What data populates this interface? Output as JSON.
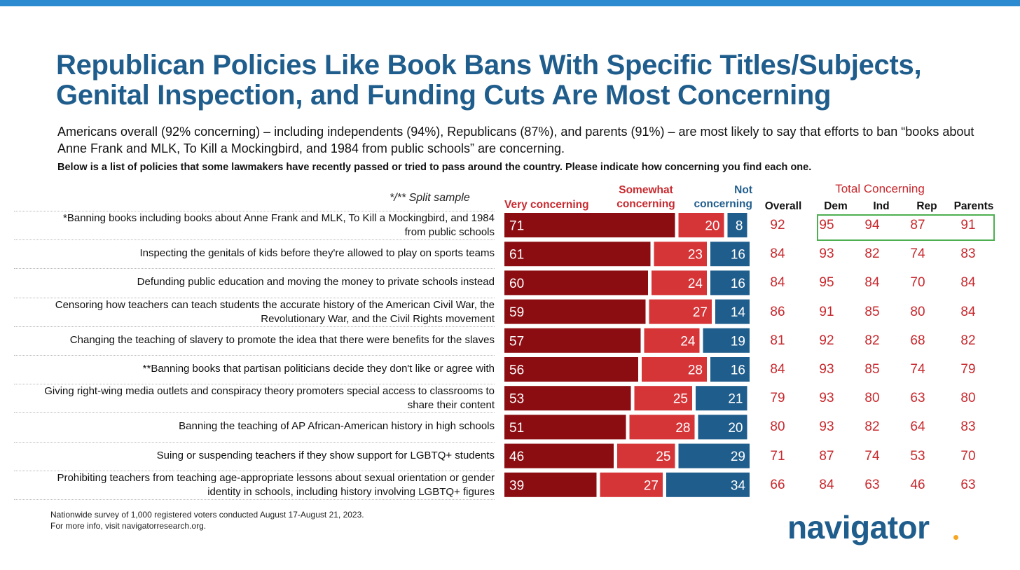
{
  "title": "Republican Policies Like Book Bans With Specific Titles/Subjects, Genital Inspection, and Funding Cuts Are Most Concerning",
  "subtitle": "Americans overall (92% concerning) – including independents (94%), Republicans (87%), and parents (91%) – are most likely to say that efforts to ban “books about Anne Frank and MLK, To Kill a Mockingbird, and 1984 from public schools” are concerning.",
  "question": "Below is a list of policies that some lawmakers have recently passed or tried to pass around the country. Please indicate how concerning you find each one.",
  "split_note": "*/** Split sample",
  "headers": {
    "very": "Very concerning",
    "somewhat": "Somewhat concerning",
    "not": "Not concerning",
    "overall": "Overall",
    "total": "Total Concerning",
    "dem": "Dem",
    "ind": "Ind",
    "rep": "Rep",
    "parents": "Parents"
  },
  "colors": {
    "very": "#8b0d12",
    "somewhat": "#d63538",
    "not": "#1f5d8c",
    "numbers": "#c8292e",
    "highlight": "#4caf50",
    "accent": "#2b8ad0"
  },
  "footnote": {
    "line1": "Nationwide survey of 1,000 registered voters conducted August 17-August 21, 2023.",
    "line2": "For more info, visit navigatorresearch.org."
  },
  "logo": "navigator",
  "chart_data": {
    "type": "bar",
    "orientation": "horizontal",
    "stacked": true,
    "xlim": [
      0,
      100
    ],
    "categories": [
      "*Banning books including books about Anne Frank and MLK, To Kill a Mockingbird, and 1984 from public schools",
      "Inspecting the genitals of kids before they're allowed to play on sports teams",
      "Defunding public education and moving the money to private schools instead",
      "Censoring how teachers can teach students the accurate history of the American Civil War, the Revolutionary War, and the Civil Rights movement",
      "Changing the teaching of slavery to promote the idea that there were benefits for the slaves",
      "**Banning books that partisan politicians decide they don't like or agree with",
      "Giving right-wing media outlets and conspiracy theory promoters special access to classrooms to share their content",
      "Banning the teaching of AP African-American history in high schools",
      "Suing or suspending teachers if they show support for LGBTQ+ students",
      "Prohibiting teachers from teaching age-appropriate lessons about sexual orientation or gender identity in schools, including history involving LGBTQ+ figures"
    ],
    "series": [
      {
        "name": "Very concerning",
        "values": [
          71,
          61,
          60,
          59,
          57,
          56,
          53,
          51,
          46,
          39
        ]
      },
      {
        "name": "Somewhat concerning",
        "values": [
          20,
          23,
          24,
          27,
          24,
          28,
          25,
          28,
          25,
          27
        ]
      },
      {
        "name": "Not concerning",
        "values": [
          8,
          16,
          16,
          14,
          19,
          16,
          21,
          20,
          29,
          34
        ]
      }
    ],
    "total_concerning": {
      "Overall": [
        92,
        84,
        84,
        86,
        81,
        84,
        79,
        80,
        71,
        66
      ],
      "Dem": [
        95,
        93,
        95,
        91,
        92,
        93,
        93,
        93,
        87,
        84
      ],
      "Ind": [
        94,
        82,
        84,
        85,
        82,
        85,
        80,
        82,
        74,
        63
      ],
      "Rep": [
        87,
        74,
        70,
        80,
        68,
        74,
        63,
        64,
        53,
        46
      ],
      "Parents": [
        91,
        83,
        84,
        84,
        82,
        79,
        80,
        83,
        70,
        63
      ]
    },
    "highlighted_row": 0
  }
}
